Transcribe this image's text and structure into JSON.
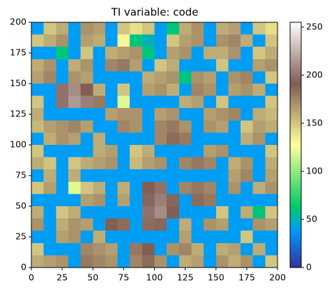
{
  "chart_data": {
    "type": "heatmap",
    "title": "TI variable: code",
    "colormap": "terrain",
    "xlim": [
      0,
      200
    ],
    "ylim": [
      0,
      200
    ],
    "xticks": [
      0,
      25,
      50,
      75,
      100,
      125,
      150,
      175,
      200
    ],
    "yticks": [
      0,
      25,
      50,
      75,
      100,
      125,
      150,
      175,
      200
    ],
    "clim": [
      0,
      255
    ],
    "cticks": [
      0,
      50,
      100,
      150,
      200,
      250
    ],
    "z": [
      [
        40,
        150,
        160,
        40,
        170,
        165,
        40,
        150,
        140,
        150,
        40,
        60,
        160,
        170,
        40,
        160,
        165,
        40,
        150,
        140
      ],
      [
        150,
        160,
        170,
        40,
        165,
        160,
        40,
        130,
        60,
        50,
        40,
        150,
        165,
        170,
        40,
        170,
        175,
        160,
        40,
        150
      ],
      [
        40,
        40,
        60,
        40,
        150,
        40,
        160,
        165,
        170,
        60,
        40,
        165,
        170,
        40,
        160,
        160,
        170,
        40,
        150,
        160
      ],
      [
        160,
        170,
        40,
        160,
        170,
        40,
        175,
        180,
        165,
        40,
        150,
        160,
        40,
        40,
        40,
        150,
        40,
        40,
        165,
        170
      ],
      [
        165,
        175,
        40,
        170,
        165,
        40,
        40,
        40,
        40,
        160,
        165,
        170,
        60,
        170,
        165,
        40,
        170,
        175,
        40,
        150
      ],
      [
        40,
        40,
        200,
        210,
        190,
        160,
        40,
        150,
        40,
        165,
        170,
        160,
        40,
        175,
        170,
        40,
        165,
        170,
        160,
        40
      ],
      [
        150,
        40,
        200,
        215,
        205,
        180,
        40,
        120,
        40,
        40,
        40,
        40,
        160,
        165,
        40,
        150,
        40,
        40,
        40,
        150
      ],
      [
        160,
        40,
        40,
        40,
        40,
        40,
        165,
        170,
        170,
        40,
        165,
        170,
        40,
        40,
        165,
        170,
        175,
        40,
        160,
        155
      ],
      [
        155,
        165,
        170,
        175,
        165,
        40,
        40,
        175,
        170,
        40,
        175,
        180,
        170,
        40,
        170,
        165,
        40,
        150,
        165,
        160
      ],
      [
        40,
        160,
        170,
        165,
        40,
        160,
        40,
        40,
        40,
        40,
        175,
        185,
        180,
        40,
        40,
        40,
        40,
        160,
        170,
        40
      ],
      [
        150,
        40,
        40,
        40,
        40,
        160,
        165,
        40,
        150,
        160,
        40,
        40,
        40,
        40,
        165,
        170,
        40,
        40,
        40,
        150
      ],
      [
        160,
        150,
        40,
        150,
        160,
        165,
        170,
        40,
        155,
        165,
        170,
        40,
        175,
        180,
        175,
        40,
        160,
        170,
        40,
        160
      ],
      [
        40,
        160,
        40,
        160,
        40,
        40,
        40,
        40,
        40,
        40,
        40,
        40,
        40,
        40,
        40,
        40,
        165,
        175,
        40,
        165
      ],
      [
        150,
        165,
        40,
        120,
        150,
        160,
        40,
        160,
        40,
        190,
        200,
        40,
        175,
        180,
        175,
        40,
        170,
        40,
        160,
        170
      ],
      [
        40,
        40,
        40,
        40,
        165,
        170,
        40,
        165,
        40,
        195,
        205,
        195,
        40,
        185,
        180,
        40,
        40,
        40,
        40,
        40
      ],
      [
        160,
        40,
        150,
        160,
        40,
        40,
        40,
        40,
        40,
        200,
        210,
        190,
        40,
        40,
        40,
        150,
        40,
        160,
        60,
        150
      ],
      [
        170,
        40,
        160,
        170,
        165,
        40,
        190,
        185,
        40,
        185,
        195,
        40,
        160,
        40,
        170,
        165,
        40,
        40,
        170,
        165
      ],
      [
        40,
        40,
        165,
        170,
        40,
        160,
        40,
        40,
        40,
        40,
        40,
        40,
        165,
        40,
        40,
        40,
        40,
        150,
        40,
        40
      ],
      [
        150,
        40,
        40,
        40,
        175,
        170,
        165,
        40,
        180,
        190,
        40,
        170,
        175,
        160,
        40,
        160,
        165,
        40,
        160,
        40
      ],
      [
        160,
        165,
        170,
        40,
        180,
        175,
        170,
        40,
        175,
        185,
        170,
        40,
        160,
        165,
        40,
        170,
        160,
        170,
        40,
        150
      ]
    ]
  }
}
